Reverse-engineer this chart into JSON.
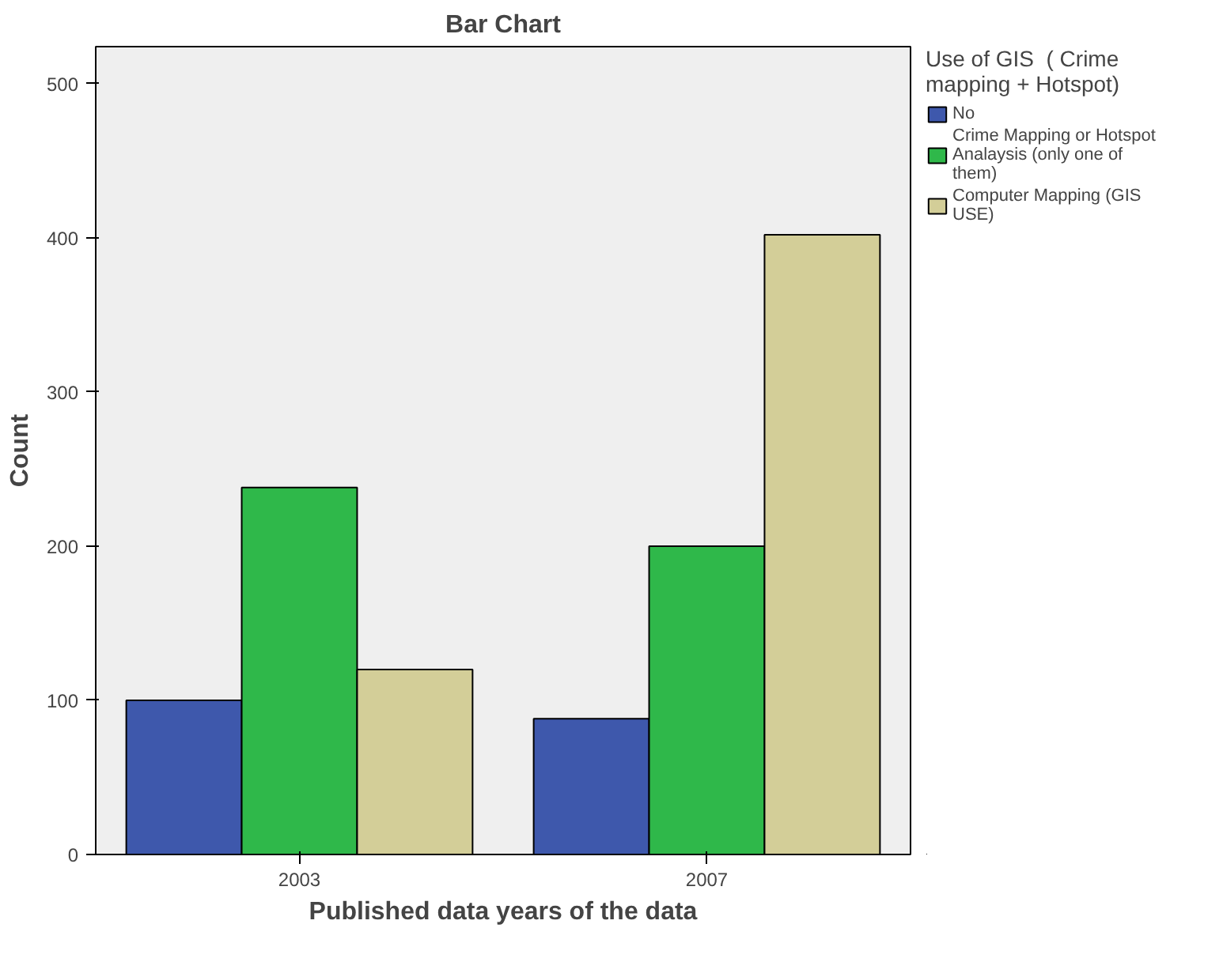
{
  "chart_data": {
    "type": "bar",
    "title": "Bar Chart",
    "xlabel": "Published data years of the data",
    "ylabel": "Count",
    "legend_title": "Use of GIS  ( Crime mapping + Hotspot)",
    "categories": [
      "2003",
      "2007"
    ],
    "series": [
      {
        "name": "No",
        "color": "#3e58ac",
        "values": [
          100,
          88
        ]
      },
      {
        "name": "Crime Mapping or Hotspot Analaysis (only one of them)",
        "color": "#2fb84a",
        "values": [
          238,
          200
        ]
      },
      {
        "name": "Computer Mapping (GIS USE)",
        "color": "#d3ce98",
        "values": [
          120,
          402
        ]
      }
    ],
    "ylim": [
      0,
      524
    ],
    "yticks": [
      0,
      100,
      200,
      300,
      400,
      500
    ],
    "grid": false,
    "legend": "right"
  }
}
